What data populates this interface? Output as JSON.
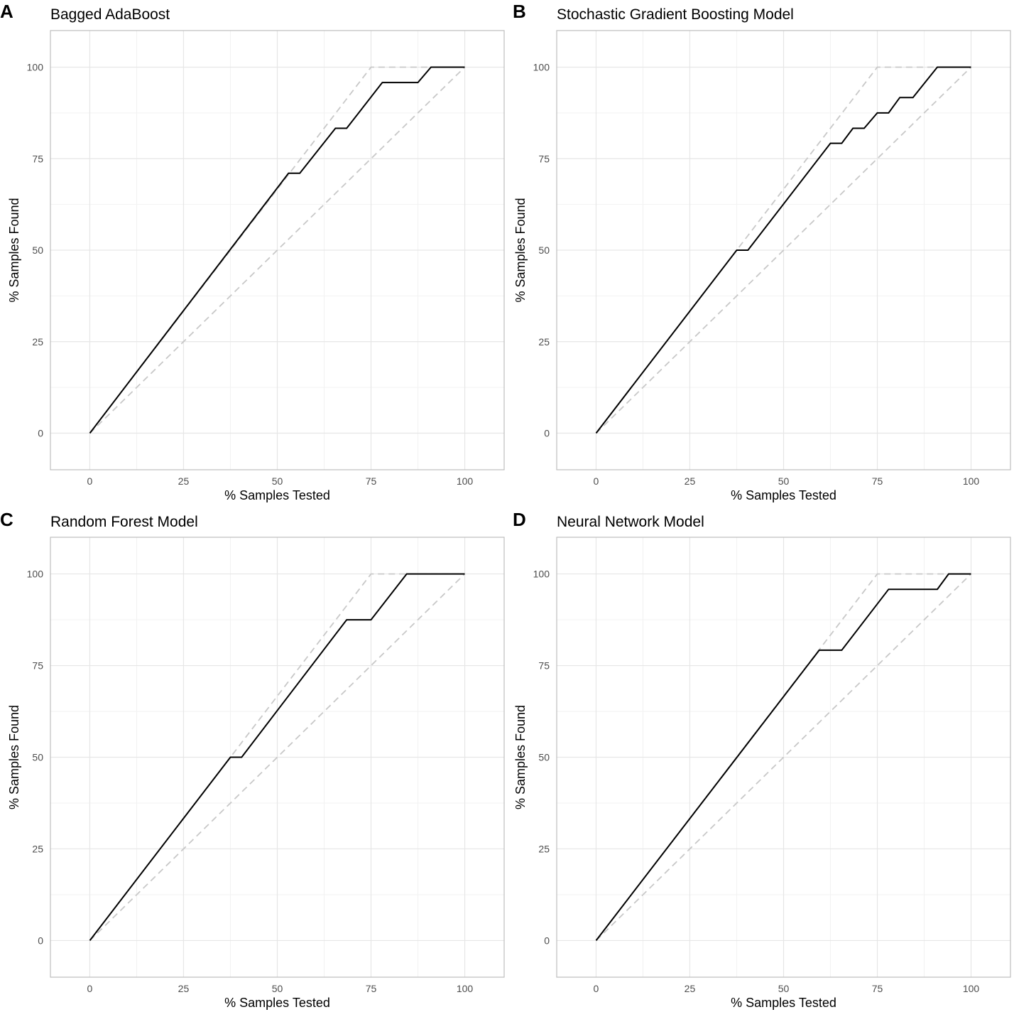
{
  "figure": {
    "colors": {
      "gain": "#000000",
      "reference": "#c8c8c8",
      "grid": "#e6e6e6",
      "border": "#bdbdbd"
    }
  },
  "chart_data": [
    {
      "panel": "A",
      "type": "line",
      "title": "Bagged AdaBoost",
      "xlabel": "% Samples Tested",
      "ylabel": "% Samples Found",
      "xlim": [
        -10.5,
        110.5
      ],
      "ylim": [
        -10,
        110
      ],
      "xticks": [
        0,
        25,
        50,
        75,
        100
      ],
      "yticks": [
        0,
        25,
        50,
        75,
        100
      ],
      "grid": true,
      "series": [
        {
          "name": "model",
          "style": "solid",
          "x": [
            0,
            53,
            56,
            65.5,
            68.5,
            78,
            87.5,
            91,
            100
          ],
          "y": [
            0,
            71,
            71,
            83.3,
            83.3,
            95.8,
            95.8,
            100,
            100
          ]
        },
        {
          "name": "perfect",
          "style": "dashed",
          "x": [
            0,
            75,
            100
          ],
          "y": [
            0,
            100,
            100
          ]
        },
        {
          "name": "random",
          "style": "dashed",
          "x": [
            0,
            100
          ],
          "y": [
            0,
            100
          ]
        }
      ]
    },
    {
      "panel": "B",
      "type": "line",
      "title": "Stochastic Gradient Boosting Model",
      "xlabel": "% Samples Tested",
      "ylabel": "% Samples Found",
      "xlim": [
        -10.5,
        110.5
      ],
      "ylim": [
        -10,
        110
      ],
      "xticks": [
        0,
        25,
        50,
        75,
        100
      ],
      "yticks": [
        0,
        25,
        50,
        75,
        100
      ],
      "grid": true,
      "series": [
        {
          "name": "model",
          "style": "solid",
          "x": [
            0,
            37.5,
            40.5,
            62.5,
            65.5,
            68.5,
            71.5,
            75,
            78,
            81,
            84.5,
            91,
            100
          ],
          "y": [
            0,
            50,
            50,
            79.2,
            79.2,
            83.3,
            83.3,
            87.5,
            87.5,
            91.7,
            91.7,
            100,
            100
          ]
        },
        {
          "name": "perfect",
          "style": "dashed",
          "x": [
            0,
            75,
            100
          ],
          "y": [
            0,
            100,
            100
          ]
        },
        {
          "name": "random",
          "style": "dashed",
          "x": [
            0,
            100
          ],
          "y": [
            0,
            100
          ]
        }
      ]
    },
    {
      "panel": "C",
      "type": "line",
      "title": "Random Forest Model",
      "xlabel": "% Samples Tested",
      "ylabel": "% Samples Found",
      "xlim": [
        -10.5,
        110.5
      ],
      "ylim": [
        -10,
        110
      ],
      "xticks": [
        0,
        25,
        50,
        75,
        100
      ],
      "yticks": [
        0,
        25,
        50,
        75,
        100
      ],
      "grid": true,
      "series": [
        {
          "name": "model",
          "style": "solid",
          "x": [
            0,
            37.5,
            40.5,
            68.5,
            75,
            84.5,
            100
          ],
          "y": [
            0,
            50,
            50,
            87.5,
            87.5,
            100,
            100
          ]
        },
        {
          "name": "perfect",
          "style": "dashed",
          "x": [
            0,
            75,
            100
          ],
          "y": [
            0,
            100,
            100
          ]
        },
        {
          "name": "random",
          "style": "dashed",
          "x": [
            0,
            100
          ],
          "y": [
            0,
            100
          ]
        }
      ]
    },
    {
      "panel": "D",
      "type": "line",
      "title": "Neural Network Model",
      "xlabel": "% Samples Tested",
      "ylabel": "% Samples Found",
      "xlim": [
        -10.5,
        110.5
      ],
      "ylim": [
        -10,
        110
      ],
      "xticks": [
        0,
        25,
        50,
        75,
        100
      ],
      "yticks": [
        0,
        25,
        50,
        75,
        100
      ],
      "grid": true,
      "series": [
        {
          "name": "model",
          "style": "solid",
          "x": [
            0,
            59.5,
            65.5,
            78,
            91,
            94,
            100
          ],
          "y": [
            0,
            79.2,
            79.2,
            95.8,
            95.8,
            100,
            100
          ]
        },
        {
          "name": "perfect",
          "style": "dashed",
          "x": [
            0,
            75,
            100
          ],
          "y": [
            0,
            100,
            100
          ]
        },
        {
          "name": "random",
          "style": "dashed",
          "x": [
            0,
            100
          ],
          "y": [
            0,
            100
          ]
        }
      ]
    }
  ]
}
